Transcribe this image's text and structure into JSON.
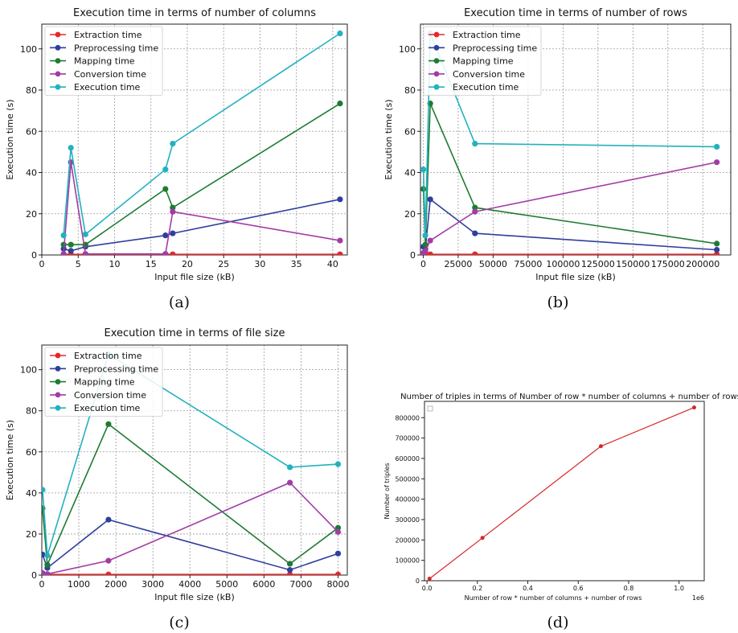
{
  "charts": [
    {
      "id": "a",
      "caption": "(a)",
      "type": "line",
      "title": "Execution time in terms of number of columns",
      "xlabel": "Input file size (kB)",
      "ylabel": "Execution time (s)",
      "xlim": [
        0,
        42
      ],
      "ylim": [
        0,
        112
      ],
      "xticks": [
        0,
        5,
        10,
        15,
        20,
        25,
        30,
        35,
        40
      ],
      "yticks": [
        0,
        20,
        40,
        60,
        80,
        100
      ],
      "grid": true,
      "legend_position": "top-left",
      "x": [
        3,
        4,
        6,
        17,
        18,
        41
      ],
      "series": [
        {
          "name": "Extraction time",
          "color": "#e8262a",
          "values": [
            0.3,
            0.3,
            0.3,
            0.3,
            0.3,
            0.3
          ]
        },
        {
          "name": "Preprocessing time",
          "color": "#2e3f9e",
          "values": [
            3,
            2,
            4,
            9.5,
            10.5,
            27
          ]
        },
        {
          "name": "Mapping time",
          "color": "#1e7b33",
          "values": [
            5,
            5,
            5,
            32,
            23,
            73.5
          ]
        },
        {
          "name": "Conversion time",
          "color": "#a23ca5",
          "values": [
            0.5,
            45,
            0.5,
            0.5,
            21,
            7
          ]
        },
        {
          "name": "Execution time",
          "color": "#22b2bf",
          "values": [
            9.5,
            52,
            10,
            41.5,
            54,
            107.5
          ]
        }
      ]
    },
    {
      "id": "b",
      "caption": "(b)",
      "type": "line",
      "title": "Execution time in terms of number of rows",
      "xlabel": "Input file size (kB)",
      "ylabel": "Execution time (s)",
      "xlim": [
        -2000,
        220000
      ],
      "ylim": [
        0,
        112
      ],
      "xticks": [
        0,
        25000,
        50000,
        75000,
        100000,
        125000,
        150000,
        175000,
        200000
      ],
      "yticks": [
        0,
        20,
        40,
        60,
        80,
        100
      ],
      "grid": true,
      "legend_position": "top-left",
      "x": [
        100,
        1500,
        5000,
        37000,
        210000
      ],
      "series": [
        {
          "name": "Extraction time",
          "color": "#e8262a",
          "values": [
            0.3,
            0.3,
            0.3,
            0.3,
            0.3
          ]
        },
        {
          "name": "Preprocessing time",
          "color": "#2e3f9e",
          "values": [
            4,
            3,
            27,
            10.5,
            2.5
          ]
        },
        {
          "name": "Mapping time",
          "color": "#1e7b33",
          "values": [
            32,
            5,
            73.5,
            23,
            5.5
          ]
        },
        {
          "name": "Conversion time",
          "color": "#a23ca5",
          "values": [
            1,
            2,
            7,
            21,
            45
          ]
        },
        {
          "name": "Execution time",
          "color": "#22b2bf",
          "values": [
            41.5,
            9.5,
            107.5,
            54,
            52.5
          ]
        }
      ]
    },
    {
      "id": "c",
      "caption": "(c)",
      "type": "line",
      "title": "Execution time in terms of file size",
      "xlabel": "Input file size (kB)",
      "ylabel": "Execution time (s)",
      "xlim": [
        0,
        8250
      ],
      "ylim": [
        0,
        112
      ],
      "xticks": [
        0,
        1000,
        2000,
        3000,
        4000,
        5000,
        6000,
        7000,
        8000
      ],
      "yticks": [
        0,
        20,
        40,
        60,
        80,
        100
      ],
      "grid": true,
      "legend_position": "top-left",
      "x": [
        20,
        150,
        1800,
        6700,
        8000
      ],
      "series": [
        {
          "name": "Extraction time",
          "color": "#e8262a",
          "values": [
            0.3,
            0.3,
            0.3,
            0.3,
            0.3
          ]
        },
        {
          "name": "Preprocessing time",
          "color": "#2e3f9e",
          "values": [
            10,
            3.5,
            27,
            2.5,
            10.5
          ]
        },
        {
          "name": "Mapping time",
          "color": "#1e7b33",
          "values": [
            32.5,
            5,
            73.5,
            5.5,
            23
          ]
        },
        {
          "name": "Conversion time",
          "color": "#a23ca5",
          "values": [
            1,
            0.5,
            7,
            45,
            21
          ]
        },
        {
          "name": "Execution time",
          "color": "#22b2bf",
          "values": [
            41.5,
            9.5,
            107.5,
            52.5,
            54
          ]
        }
      ]
    },
    {
      "id": "d",
      "caption": "(d)",
      "type": "line",
      "title": "Number of triples in terms of Number of row * number of columns + number of rows",
      "xlabel": "Number of row * number of columns + number of rows",
      "ylabel": "Number of triples",
      "x_offset_text": "1e6",
      "xlim": [
        -0.01,
        1.1
      ],
      "ylim": [
        0,
        880000
      ],
      "xticks": [
        0.0,
        0.2,
        0.4,
        0.6,
        0.8,
        1.0
      ],
      "xtick_labels": [
        "0.0",
        "0.2",
        "0.4",
        "0.6",
        "0.8",
        "1.0"
      ],
      "yticks": [
        0,
        100000,
        200000,
        300000,
        400000,
        500000,
        600000,
        700000,
        800000
      ],
      "grid": false,
      "legend_position": "top-left",
      "x": [
        0.01,
        0.22,
        0.69,
        1.06
      ],
      "series": [
        {
          "name": "",
          "color": "#d62728",
          "values": [
            10000,
            210000,
            660000,
            850000
          ]
        }
      ]
    }
  ]
}
